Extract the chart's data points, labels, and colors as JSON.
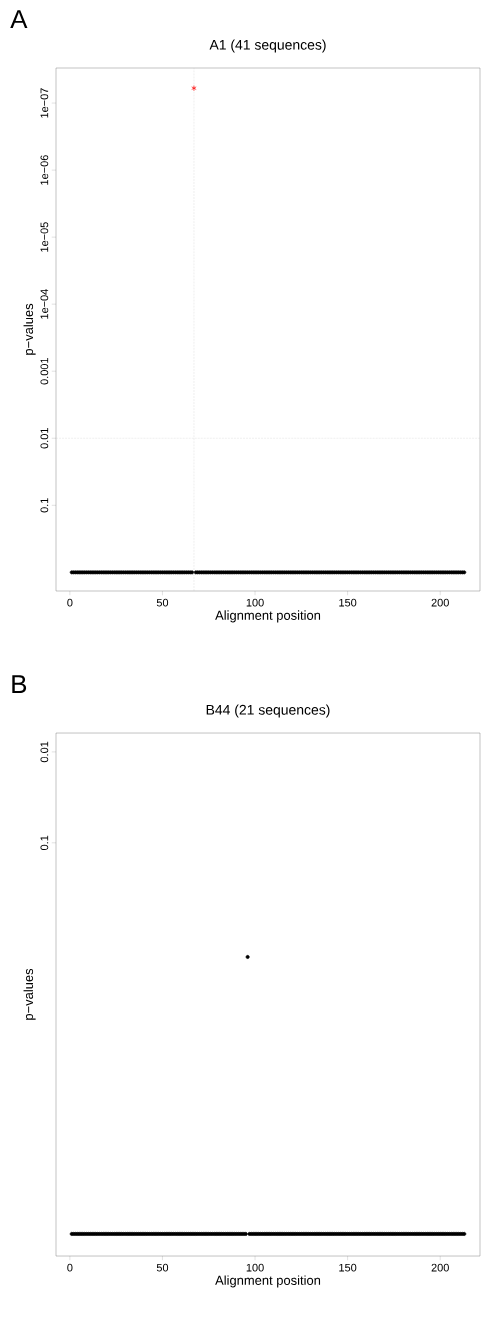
{
  "chart_data": [
    {
      "type": "scatter",
      "title": "A1 (41 sequences)",
      "xlabel": "Alignment position",
      "ylabel": "p−values",
      "annotations": [
        "A"
      ],
      "log": "y",
      "marker": "circle",
      "xlim": [
        -7.5,
        221.5
      ],
      "ylim": [
        1.9,
        3e-08
      ],
      "xticks": [
        0,
        50,
        100,
        150,
        200
      ],
      "yticks": [
        {
          "value": 0.1,
          "label": "0.1"
        },
        {
          "value": 0.01,
          "label": "0.01"
        },
        {
          "value": 0.001,
          "label": "0.001"
        },
        {
          "value": 0.0001,
          "label": "1e−04"
        },
        {
          "value": 1e-05,
          "label": "1e−05"
        },
        {
          "value": 1e-06,
          "label": "1e−06"
        },
        {
          "value": 1e-07,
          "label": "1e−07"
        }
      ],
      "ref_lines": [
        {
          "axis": "x",
          "value": 67,
          "color": "#bebebe",
          "line_style": "dotted"
        },
        {
          "axis": "y",
          "value": 0.01,
          "color": "#bebebe",
          "line_style": "dotted"
        }
      ],
      "series": [
        {
          "color": "#000000",
          "x": [
            1,
            2,
            3,
            4,
            5,
            6,
            7,
            8,
            9,
            10,
            11,
            12,
            13,
            14,
            15,
            16,
            17,
            18,
            19,
            20,
            21,
            22,
            23,
            24,
            25,
            26,
            27,
            28,
            29,
            30,
            31,
            32,
            33,
            34,
            35,
            36,
            37,
            38,
            39,
            40,
            41,
            42,
            43,
            44,
            45,
            46,
            47,
            48,
            49,
            50,
            51,
            52,
            53,
            54,
            55,
            56,
            57,
            58,
            59,
            60,
            61,
            62,
            63,
            64,
            65,
            66,
            68,
            69,
            70,
            71,
            72,
            73,
            74,
            75,
            76,
            77,
            78,
            79,
            80,
            81,
            82,
            83,
            84,
            85,
            86,
            87,
            88,
            89,
            90,
            91,
            92,
            93,
            94,
            95,
            96,
            97,
            98,
            99,
            100,
            101,
            102,
            103,
            104,
            105,
            106,
            107,
            108,
            109,
            110,
            111,
            112,
            113,
            114,
            115,
            116,
            117,
            118,
            119,
            120,
            121,
            122,
            123,
            124,
            125,
            126,
            127,
            128,
            129,
            130,
            131,
            132,
            133,
            134,
            135,
            136,
            137,
            138,
            139,
            140,
            141,
            142,
            143,
            144,
            145,
            146,
            147,
            148,
            149,
            150,
            151,
            152,
            153,
            154,
            155,
            156,
            157,
            158,
            159,
            160,
            161,
            162,
            163,
            164,
            165,
            166,
            167,
            168,
            169,
            170,
            171,
            172,
            173,
            174,
            175,
            176,
            177,
            178,
            179,
            180,
            181,
            182,
            183,
            184,
            185,
            186,
            187,
            188,
            189,
            190,
            191,
            192,
            193,
            194,
            195,
            196,
            197,
            198,
            199,
            200,
            201,
            202,
            203,
            204,
            205,
            206,
            207,
            208,
            209,
            210,
            211,
            212,
            213
          ],
          "values": [
            1,
            1,
            1,
            1,
            1,
            1,
            1,
            1,
            1,
            1,
            1,
            1,
            1,
            1,
            1,
            1,
            1,
            1,
            1,
            1,
            1,
            1,
            1,
            1,
            1,
            1,
            1,
            1,
            1,
            1,
            1,
            1,
            1,
            1,
            1,
            1,
            1,
            1,
            1,
            1,
            1,
            1,
            1,
            1,
            1,
            1,
            1,
            1,
            1,
            1,
            1,
            1,
            1,
            1,
            1,
            1,
            1,
            1,
            1,
            1,
            1,
            1,
            1,
            1,
            1,
            1,
            1,
            1,
            1,
            1,
            1,
            1,
            1,
            1,
            1,
            1,
            1,
            1,
            1,
            1,
            1,
            1,
            1,
            1,
            1,
            1,
            1,
            1,
            1,
            1,
            1,
            1,
            1,
            1,
            1,
            1,
            1,
            1,
            1,
            1,
            1,
            1,
            1,
            1,
            1,
            1,
            1,
            1,
            1,
            1,
            1,
            1,
            1,
            1,
            1,
            1,
            1,
            1,
            1,
            1,
            1,
            1,
            1,
            1,
            1,
            1,
            1,
            1,
            1,
            1,
            1,
            1,
            1,
            1,
            1,
            1,
            1,
            1,
            1,
            1,
            1,
            1,
            1,
            1,
            1,
            1,
            1,
            1,
            1,
            1,
            1,
            1,
            1,
            1,
            1,
            1,
            1,
            1,
            1,
            1,
            1,
            1,
            1,
            1,
            1,
            1,
            1,
            1,
            1,
            1,
            1,
            1,
            1,
            1,
            1,
            1,
            1,
            1,
            1,
            1,
            1,
            1,
            1,
            1,
            1,
            1,
            1,
            1,
            1,
            1,
            1,
            1,
            1,
            1,
            1,
            1,
            1,
            1,
            1,
            1,
            1,
            1,
            1,
            1,
            1,
            1,
            1,
            1,
            1,
            1,
            1,
            1
          ]
        },
        {
          "color": "#ff0000",
          "marker": "cross",
          "x": [
            67
          ],
          "values": [
            6e-08
          ]
        }
      ]
    },
    {
      "type": "scatter",
      "title": "B44 (21 sequences)",
      "xlabel": "Alignment position",
      "ylabel": "p−values",
      "annotations": [
        "B"
      ],
      "log": "y",
      "marker": "circle",
      "xlim": [
        -7.5,
        221.5
      ],
      "ylim": [
        3500,
        0.0062
      ],
      "xticks": [
        0,
        50,
        100,
        150,
        200
      ],
      "yticks": [
        {
          "value": 0.1,
          "label": "0.1"
        },
        {
          "value": 0.01,
          "label": "0.01"
        }
      ],
      "series": [
        {
          "color": "#000000",
          "x": [
            1,
            2,
            3,
            4,
            5,
            6,
            7,
            8,
            9,
            10,
            11,
            12,
            13,
            14,
            15,
            16,
            17,
            18,
            19,
            20,
            21,
            22,
            23,
            24,
            25,
            26,
            27,
            28,
            29,
            30,
            31,
            32,
            33,
            34,
            35,
            36,
            37,
            38,
            39,
            40,
            41,
            42,
            43,
            44,
            45,
            46,
            47,
            48,
            49,
            50,
            51,
            52,
            53,
            54,
            55,
            56,
            57,
            58,
            59,
            60,
            61,
            62,
            63,
            64,
            65,
            66,
            67,
            68,
            69,
            70,
            71,
            72,
            73,
            74,
            75,
            76,
            77,
            78,
            79,
            80,
            81,
            82,
            83,
            84,
            85,
            86,
            87,
            88,
            89,
            90,
            91,
            92,
            93,
            94,
            95,
            96,
            97,
            98,
            99,
            100,
            101,
            102,
            103,
            104,
            105,
            106,
            107,
            108,
            109,
            110,
            111,
            112,
            113,
            114,
            115,
            116,
            117,
            118,
            119,
            120,
            121,
            122,
            123,
            124,
            125,
            126,
            127,
            128,
            129,
            130,
            131,
            132,
            133,
            134,
            135,
            136,
            137,
            138,
            139,
            140,
            141,
            142,
            143,
            144,
            145,
            146,
            147,
            148,
            149,
            150,
            151,
            152,
            153,
            154,
            155,
            156,
            157,
            158,
            159,
            160,
            161,
            162,
            163,
            164,
            165,
            166,
            167,
            168,
            169,
            170,
            171,
            172,
            173,
            174,
            175,
            176,
            177,
            178,
            179,
            180,
            181,
            182,
            183,
            184,
            185,
            186,
            187,
            188,
            189,
            190,
            191,
            192,
            193,
            194,
            195,
            196,
            197,
            198,
            199,
            200,
            201,
            202,
            203,
            204,
            205,
            206,
            207,
            208,
            209,
            210,
            211,
            212,
            213
          ],
          "values": [
            2000,
            2000,
            2000,
            2000,
            2000,
            2000,
            2000,
            2000,
            2000,
            2000,
            2000,
            2000,
            2000,
            2000,
            2000,
            2000,
            2000,
            2000,
            2000,
            2000,
            2000,
            2000,
            2000,
            2000,
            2000,
            2000,
            2000,
            2000,
            2000,
            2000,
            2000,
            2000,
            2000,
            2000,
            2000,
            2000,
            2000,
            2000,
            2000,
            2000,
            2000,
            2000,
            2000,
            2000,
            2000,
            2000,
            2000,
            2000,
            2000,
            2000,
            2000,
            2000,
            2000,
            2000,
            2000,
            2000,
            2000,
            2000,
            2000,
            2000,
            2000,
            2000,
            2000,
            2000,
            2000,
            2000,
            2000,
            2000,
            2000,
            2000,
            2000,
            2000,
            2000,
            2000,
            2000,
            2000,
            2000,
            2000,
            2000,
            2000,
            2000,
            2000,
            2000,
            2000,
            2000,
            2000,
            2000,
            2000,
            2000,
            2000,
            2000,
            2000,
            2000,
            2000,
            2000,
            1.8,
            2000,
            2000,
            2000,
            2000,
            2000,
            2000,
            2000,
            2000,
            2000,
            2000,
            2000,
            2000,
            2000,
            2000,
            2000,
            2000,
            2000,
            2000,
            2000,
            2000,
            2000,
            2000,
            2000,
            2000,
            2000,
            2000,
            2000,
            2000,
            2000,
            2000,
            2000,
            2000,
            2000,
            2000,
            2000,
            2000,
            2000,
            2000,
            2000,
            2000,
            2000,
            2000,
            2000,
            2000,
            2000,
            2000,
            2000,
            2000,
            2000,
            2000,
            2000,
            2000,
            2000,
            2000,
            2000,
            2000,
            2000,
            2000,
            2000,
            2000,
            2000,
            2000,
            2000,
            2000,
            2000,
            2000,
            2000,
            2000,
            2000,
            2000,
            2000,
            2000,
            2000,
            2000,
            2000,
            2000,
            2000,
            2000,
            2000,
            2000,
            2000,
            2000,
            2000,
            2000,
            2000,
            2000,
            2000,
            2000,
            2000,
            2000,
            2000,
            2000,
            2000,
            2000,
            2000,
            2000,
            2000,
            2000,
            2000,
            2000,
            2000,
            2000,
            2000,
            2000,
            2000,
            2000,
            2000,
            2000,
            2000,
            2000,
            2000,
            2000,
            2000,
            2000,
            2000,
            2000,
            2000
          ]
        }
      ]
    }
  ]
}
